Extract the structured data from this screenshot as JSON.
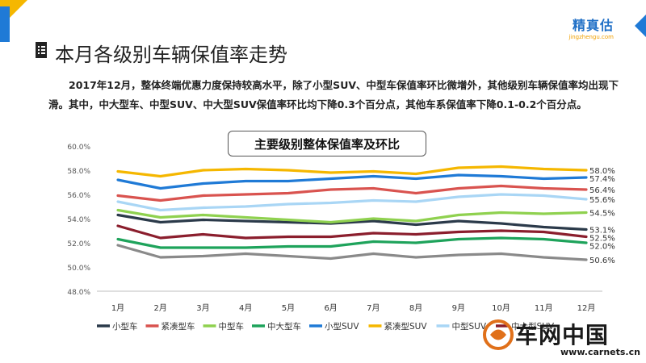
{
  "header": {
    "brand": "精真估",
    "brand_domain": "jingzhengu.com",
    "title": "本月各级别车辆保值率走势",
    "paragraph": "2017年12月，整体终端优惠力度保持较高水平，除了小型SUV、中型车保值率环比微增外，其他级别车辆保值率均出现下滑。其中，中大型车、中型SUV、中大型SUV保值率环比均下降0.3个百分点，其他车系保值率下降0.1-0.2个百分点。"
  },
  "chart_data": {
    "type": "line",
    "title": "主要级别整体保值率及环比",
    "categories": [
      "1月",
      "2月",
      "3月",
      "4月",
      "5月",
      "6月",
      "7月",
      "8月",
      "9月",
      "10月",
      "11月",
      "12月"
    ],
    "y_ticks": [
      "48.0%",
      "50.0%",
      "52.0%",
      "54.0%",
      "56.0%",
      "58.0%",
      "60.0%"
    ],
    "ylim": [
      48.0,
      60.0
    ],
    "legend_position": "bottom",
    "series": [
      {
        "name": "小型车",
        "color": "#2b3a4a",
        "values": [
          54.3,
          53.7,
          53.9,
          53.8,
          53.7,
          53.6,
          53.8,
          53.5,
          53.8,
          53.6,
          53.3,
          53.1
        ],
        "end_label": "53.1%"
      },
      {
        "name": "紧凑型车",
        "color": "#d9534f",
        "values": [
          55.9,
          55.5,
          55.9,
          56.0,
          56.1,
          56.4,
          56.5,
          56.1,
          56.5,
          56.7,
          56.5,
          56.4
        ],
        "end_label": "56.4%"
      },
      {
        "name": "中型车",
        "color": "#8fd14f",
        "values": [
          54.7,
          54.1,
          54.3,
          54.1,
          53.9,
          53.7,
          54.0,
          53.8,
          54.3,
          54.5,
          54.4,
          54.5
        ],
        "end_label": "54.5%"
      },
      {
        "name": "中大型车",
        "color": "#1ea35b",
        "values": [
          52.3,
          51.6,
          51.6,
          51.6,
          51.7,
          51.7,
          52.1,
          52.0,
          52.3,
          52.4,
          52.3,
          52.0
        ],
        "end_label": "52.0%"
      },
      {
        "name": "小型SUV",
        "color": "#1f7ad6",
        "values": [
          57.2,
          56.5,
          56.9,
          57.1,
          57.1,
          57.3,
          57.5,
          57.3,
          57.6,
          57.5,
          57.3,
          57.4
        ],
        "end_label": "57.4%"
      },
      {
        "name": "紧凑型SUV",
        "color": "#f5b700",
        "values": [
          57.9,
          57.5,
          58.0,
          58.1,
          58.0,
          57.8,
          57.9,
          57.7,
          58.2,
          58.3,
          58.1,
          58.0
        ],
        "end_label": "58.0%"
      },
      {
        "name": "中型SUV",
        "color": "#a9d6f5",
        "values": [
          55.4,
          54.7,
          54.9,
          55.0,
          55.2,
          55.3,
          55.5,
          55.4,
          55.8,
          56.0,
          55.9,
          55.6
        ],
        "end_label": "55.6%"
      },
      {
        "name": "中大型SUV",
        "color": "#8b1e2d",
        "values": [
          53.4,
          52.4,
          52.7,
          52.4,
          52.5,
          52.5,
          52.8,
          52.7,
          52.9,
          53.0,
          52.9,
          52.5
        ],
        "end_label": "52.5%"
      },
      {
        "name": "",
        "color": "#8a8a8a",
        "values": [
          51.8,
          50.8,
          50.9,
          51.1,
          50.9,
          50.7,
          51.1,
          50.8,
          51.0,
          51.1,
          50.8,
          50.6
        ],
        "end_label": "50.6%"
      }
    ]
  },
  "watermark": {
    "text": "车网中国",
    "url": "www.carnets.cn"
  }
}
